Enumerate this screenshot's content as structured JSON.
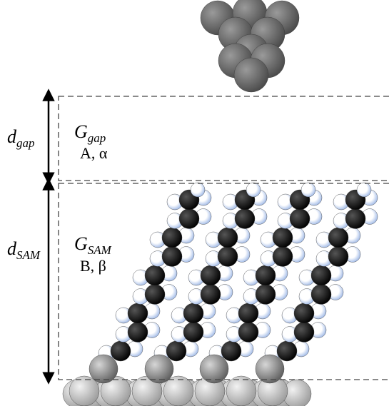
{
  "labels": [
    {
      "main": "d",
      "sub": "gap"
    },
    {
      "main": "G",
      "sub": "gap",
      "params": "A, α"
    },
    {
      "main": "d",
      "sub": "SAM"
    },
    {
      "main": "G",
      "sub": "SAM",
      "params": "B, β"
    }
  ]
}
